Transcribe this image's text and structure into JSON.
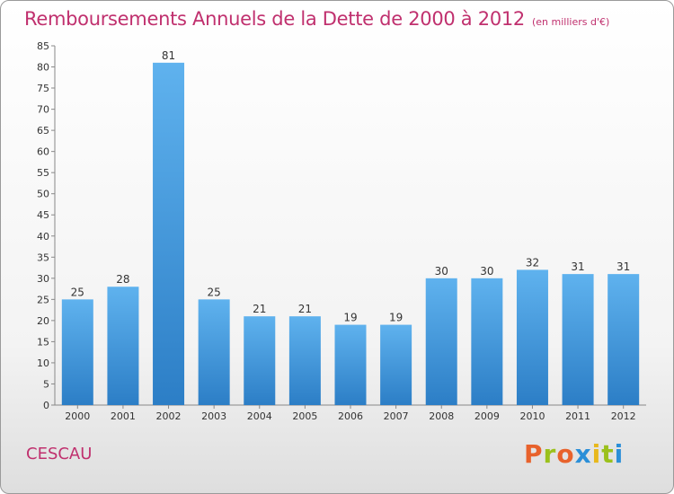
{
  "chart_data": {
    "type": "bar",
    "title": "Remboursements Annuels de la Dette de 2000 à 2012",
    "subtitle": "(en milliers d'€)",
    "categories": [
      "2000",
      "2001",
      "2002",
      "2003",
      "2004",
      "2005",
      "2006",
      "2007",
      "2008",
      "2009",
      "2010",
      "2011",
      "2012"
    ],
    "values": [
      25,
      28,
      81,
      25,
      21,
      21,
      19,
      19,
      30,
      30,
      32,
      31,
      31
    ],
    "ylim": [
      0,
      85
    ],
    "yticks": [
      0,
      5,
      10,
      15,
      20,
      25,
      30,
      35,
      40,
      45,
      50,
      55,
      60,
      65,
      70,
      75,
      80,
      85
    ],
    "grid": false,
    "bar_color": "#3c8fd6"
  },
  "footer": {
    "commune": "CESCAU",
    "brand": "Proxiti",
    "brand_colors": [
      "#e8622c",
      "#9bc11c",
      "#e8622c",
      "#2b8fd8",
      "#e8b81c",
      "#9bc11c",
      "#2b8fd8"
    ]
  }
}
